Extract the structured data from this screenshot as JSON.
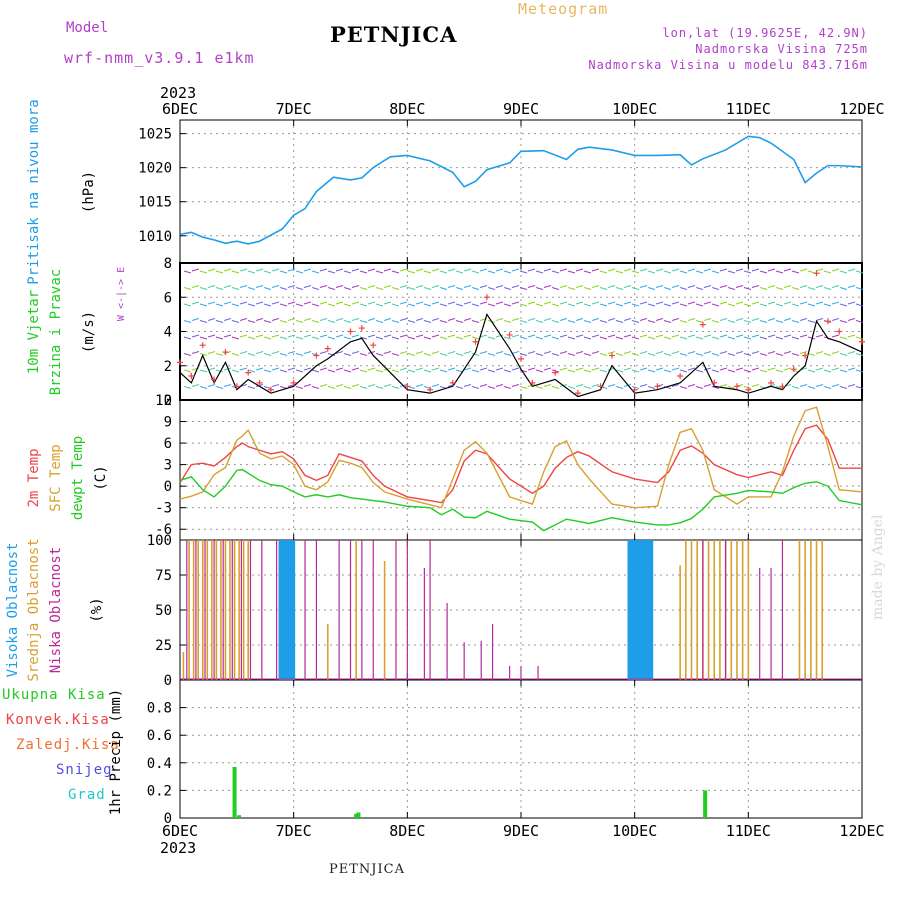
{
  "header": {
    "model_label": "Model",
    "model_name": "wrf-nmm_v3.9.1 e1km",
    "station": "PETNJICA",
    "product": "Meteogram",
    "lonlat": "lon,lat (19.9625E, 42.9N)",
    "altitude": "Nadmorska Visina 725m",
    "altitude_model": "Nadmorska Visina u modelu 843.716m"
  },
  "time_axis": {
    "year": "2023",
    "tick_labels": [
      "6DEC",
      "7DEC",
      "8DEC",
      "9DEC",
      "10DEC",
      "11DEC",
      "12DEC"
    ]
  },
  "footer": {
    "station": "PETNJICA",
    "credit": "made by Angel"
  },
  "colors": {
    "pressure": "#1e9ee8",
    "temp_2m": "#f04444",
    "temp_sfc": "#d8a030",
    "dewpoint": "#22cc22",
    "cloud_high": "#1e9ee8",
    "cloud_mid": "#d8a030",
    "cloud_low": "#b82898",
    "precip_total": "#22cc22",
    "wind_speed": "#000000",
    "wind_gust": "#f04444"
  },
  "chart_data": [
    {
      "type": "line",
      "ylabel_left": "Pritisak na nivou mora",
      "ylabel_unit": "(hPa)",
      "ylim": [
        1006,
        1027
      ],
      "yticks": [
        "1010",
        "1015",
        "1020",
        "1025"
      ],
      "ytick_values": [
        1010,
        1015,
        1020,
        1025
      ],
      "x": [
        0,
        0.1,
        0.2,
        0.3,
        0.4,
        0.5,
        0.6,
        0.7,
        0.9,
        1.0,
        1.1,
        1.2,
        1.35,
        1.5,
        1.6,
        1.7,
        1.85,
        2.0,
        2.2,
        2.4,
        2.5,
        2.6,
        2.7,
        2.9,
        3.0,
        3.2,
        3.4,
        3.5,
        3.6,
        3.8,
        4.0,
        4.2,
        4.4,
        4.5,
        4.6,
        4.8,
        5.0,
        5.1,
        5.2,
        5.4,
        5.5,
        5.6,
        5.7,
        5.8,
        6.0
      ],
      "series": [
        {
          "values": [
            1010.2,
            1010.5,
            1009.8,
            1009.4,
            1008.9,
            1009.2,
            1008.8,
            1009.2,
            1011.0,
            1013.0,
            1014.0,
            1016.5,
            1018.6,
            1018.2,
            1018.5,
            1020.0,
            1021.6,
            1021.8,
            1021.0,
            1019.3,
            1017.2,
            1018.0,
            1019.7,
            1020.7,
            1022.4,
            1022.5,
            1021.2,
            1022.7,
            1023.0,
            1022.6,
            1021.8,
            1021.8,
            1021.9,
            1020.4,
            1021.3,
            1022.6,
            1024.6,
            1024.4,
            1023.6,
            1021.2,
            1017.8,
            1019.2,
            1020.3,
            1020.3,
            1020.1
          ]
        }
      ]
    },
    {
      "type": "line",
      "ylabel_left": "10m Vjetar",
      "ylabel_left2": "Brzina i Pravac",
      "ylabel_unit": "(m/s)",
      "compass": "W <-|-> E",
      "ylim": [
        0,
        8
      ],
      "yticks": [
        "0",
        "2",
        "4",
        "6",
        "8"
      ],
      "ytick_values": [
        0,
        2,
        4,
        6,
        8
      ],
      "x": [
        0,
        0.1,
        0.2,
        0.3,
        0.4,
        0.5,
        0.6,
        0.7,
        0.8,
        1.0,
        1.2,
        1.3,
        1.5,
        1.6,
        1.7,
        2.0,
        2.2,
        2.4,
        2.6,
        2.7,
        2.9,
        3.0,
        3.1,
        3.3,
        3.5,
        3.7,
        3.8,
        4.0,
        4.2,
        4.4,
        4.6,
        4.7,
        4.9,
        5.0,
        5.2,
        5.3,
        5.4,
        5.5,
        5.6,
        5.7,
        5.8,
        6.0
      ],
      "series": [
        {
          "name": "speed",
          "values": [
            1.6,
            1.0,
            2.6,
            1.0,
            2.2,
            0.6,
            1.2,
            0.8,
            0.4,
            0.8,
            2.0,
            2.4,
            3.4,
            3.6,
            2.6,
            0.6,
            0.4,
            0.8,
            2.8,
            5.0,
            3.0,
            1.8,
            0.8,
            1.2,
            0.2,
            0.6,
            2.0,
            0.4,
            0.6,
            1.0,
            2.2,
            0.8,
            0.6,
            0.4,
            0.8,
            0.6,
            1.4,
            2.0,
            4.6,
            3.6,
            3.4,
            2.8
          ]
        },
        {
          "name": "gust",
          "values": [
            2.2,
            1.4,
            3.2,
            1.2,
            2.8,
            0.8,
            1.6,
            1.0,
            0.6,
            1.0,
            2.6,
            3.0,
            4.0,
            4.2,
            3.2,
            0.8,
            0.6,
            1.0,
            3.4,
            6.0,
            3.8,
            2.4,
            1.0,
            1.6,
            0.4,
            0.8,
            2.6,
            0.6,
            0.8,
            1.4,
            4.4,
            1.0,
            0.8,
            0.6,
            1.0,
            0.8,
            1.8,
            2.6,
            7.4,
            4.6,
            4.0,
            3.4
          ]
        }
      ]
    },
    {
      "type": "line",
      "ylabel_left": "2m Temp",
      "ylabel_left2": "SFC Temp",
      "ylabel_left3": "dewpt Temp",
      "ylabel_unit": "(C)",
      "ylim": [
        -7.5,
        12
      ],
      "yticks": [
        "-6",
        "-3",
        "0",
        "3",
        "6",
        "9",
        "12"
      ],
      "ytick_values": [
        -6,
        -3,
        0,
        3,
        6,
        9,
        12
      ],
      "x": [
        0,
        0.1,
        0.2,
        0.3,
        0.4,
        0.5,
        0.55,
        0.6,
        0.7,
        0.8,
        0.9,
        1.0,
        1.1,
        1.2,
        1.3,
        1.4,
        1.5,
        1.6,
        1.7,
        1.8,
        2.0,
        2.2,
        2.3,
        2.4,
        2.5,
        2.6,
        2.7,
        2.9,
        3.1,
        3.2,
        3.3,
        3.4,
        3.5,
        3.6,
        3.8,
        4.0,
        4.2,
        4.3,
        4.4,
        4.5,
        4.6,
        4.7,
        4.9,
        5.0,
        5.2,
        5.3,
        5.4,
        5.5,
        5.6,
        5.7,
        5.8,
        6.0
      ],
      "series": [
        {
          "name": "2m Temp",
          "values": [
            0.5,
            3.0,
            3.2,
            2.8,
            4.0,
            5.5,
            6.0,
            5.5,
            5.0,
            4.5,
            4.8,
            3.8,
            1.5,
            0.8,
            1.5,
            4.5,
            4.0,
            3.5,
            1.5,
            0.0,
            -1.5,
            -2.0,
            -2.3,
            -0.5,
            3.5,
            5.0,
            4.5,
            1.0,
            -1.0,
            0.0,
            2.5,
            4.0,
            4.8,
            4.2,
            2.0,
            1.0,
            0.5,
            2.0,
            5.0,
            5.6,
            4.6,
            3.0,
            1.6,
            1.2,
            2.0,
            1.5,
            5.0,
            8.0,
            8.5,
            6.5,
            2.5,
            2.5
          ]
        },
        {
          "name": "SFC Temp",
          "values": [
            -1.8,
            -1.4,
            -0.8,
            1.6,
            2.6,
            6.4,
            7.0,
            7.8,
            4.6,
            3.8,
            4.2,
            3.0,
            0.0,
            -0.5,
            0.6,
            3.6,
            3.2,
            2.6,
            0.5,
            -0.8,
            -1.8,
            -2.6,
            -3.0,
            1.0,
            5.0,
            6.2,
            4.6,
            -1.5,
            -2.5,
            2.0,
            5.5,
            6.3,
            3.0,
            1.0,
            -2.5,
            -3.0,
            -2.8,
            3.0,
            7.5,
            8.0,
            5.0,
            -0.5,
            -2.5,
            -1.5,
            -1.5,
            2.0,
            7.0,
            10.5,
            11.0,
            5.5,
            -0.5,
            -0.8
          ]
        },
        {
          "name": "dewpt Temp",
          "values": [
            0.8,
            1.3,
            -0.5,
            -1.5,
            0.0,
            2.2,
            2.3,
            1.8,
            0.8,
            0.2,
            0.0,
            -0.8,
            -1.5,
            -1.2,
            -1.5,
            -1.2,
            -1.6,
            -1.8,
            -2.0,
            -2.2,
            -2.8,
            -3.0,
            -4.0,
            -3.2,
            -4.3,
            -4.4,
            -3.5,
            -4.6,
            -5.0,
            -6.2,
            -5.4,
            -4.6,
            -4.9,
            -5.2,
            -4.4,
            -5.0,
            -5.4,
            -5.4,
            -5.1,
            -4.5,
            -3.2,
            -1.5,
            -1.0,
            -0.6,
            -0.8,
            -1.0,
            -0.2,
            0.4,
            0.6,
            0.0,
            -2.0,
            -2.6
          ]
        }
      ]
    },
    {
      "type": "bar",
      "ylabel_left": "Visoka Oblacnost",
      "ylabel_left2": "Srednja Oblacnost",
      "ylabel_left3": "Niska Oblacnost",
      "ylabel_unit": "(%)",
      "ylim": [
        0,
        100
      ],
      "yticks": [
        "0",
        "25",
        "50",
        "75",
        "100"
      ],
      "ytick_values": [
        0,
        25,
        50,
        75,
        100
      ],
      "series": [
        {
          "name": "Visoka Oblacnost",
          "x": [
            0.88,
            0.9,
            0.92,
            0.94,
            0.96,
            0.98,
            1.0,
            3.95,
            3.97,
            3.99,
            4.01,
            4.03,
            4.05,
            4.07,
            4.09,
            4.11,
            4.13,
            4.15
          ],
          "values": [
            100,
            100,
            100,
            100,
            100,
            100,
            100,
            100,
            100,
            100,
            100,
            100,
            100,
            100,
            100,
            100,
            100,
            100
          ]
        },
        {
          "name": "Srednja Oblacnost",
          "x": [
            0.03,
            0.08,
            0.12,
            0.16,
            0.2,
            0.24,
            0.28,
            0.32,
            0.36,
            0.4,
            0.44,
            0.48,
            0.52,
            0.56,
            0.6,
            1.3,
            1.55,
            1.8,
            4.4,
            4.45,
            4.5,
            4.55,
            4.6,
            4.65,
            4.7,
            4.75,
            4.8,
            4.85,
            4.9,
            4.95,
            5.0,
            5.45,
            5.5,
            5.55,
            5.6,
            5.65
          ],
          "values": [
            20,
            100,
            100,
            100,
            100,
            100,
            100,
            100,
            100,
            100,
            100,
            100,
            100,
            100,
            100,
            40,
            100,
            85,
            82,
            100,
            100,
            100,
            100,
            100,
            100,
            100,
            100,
            100,
            100,
            100,
            100,
            100,
            100,
            100,
            100,
            100
          ]
        },
        {
          "name": "Niska Oblacnost",
          "x": [
            0.06,
            0.14,
            0.22,
            0.3,
            0.38,
            0.46,
            0.54,
            0.62,
            0.72,
            0.85,
            1.1,
            1.2,
            1.4,
            1.5,
            1.6,
            1.7,
            1.9,
            2.0,
            2.15,
            2.2,
            2.35,
            2.5,
            2.65,
            2.75,
            2.9,
            3.0,
            3.15,
            4.6,
            4.8,
            5.1,
            5.2,
            5.3
          ],
          "values": [
            100,
            100,
            100,
            100,
            100,
            100,
            100,
            100,
            100,
            100,
            100,
            100,
            100,
            100,
            100,
            100,
            100,
            100,
            80,
            100,
            55,
            27,
            28,
            40,
            10,
            10,
            10,
            100,
            100,
            80,
            80,
            100
          ]
        }
      ]
    },
    {
      "type": "bar",
      "ylabel_left": "Ukupna Kisa",
      "ylabel_left2": "Konvek.Kisa",
      "ylabel_left3": "Zaledj.Kisa",
      "ylabel_left4": "Snijeg",
      "ylabel_left5": "Grad",
      "ylabel_unit": "1hr Precip (mm)",
      "ylim": [
        0,
        1
      ],
      "yticks": [
        "0",
        "0.2",
        "0.4",
        "0.6",
        "0.8"
      ],
      "ytick_values": [
        0,
        0.2,
        0.4,
        0.6,
        0.8
      ],
      "series": [
        {
          "name": "Ukupna Kisa",
          "x": [
            0.48,
            0.52,
            1.55,
            1.57,
            4.62
          ],
          "values": [
            0.37,
            0.02,
            0.03,
            0.04,
            0.2
          ]
        }
      ]
    }
  ]
}
